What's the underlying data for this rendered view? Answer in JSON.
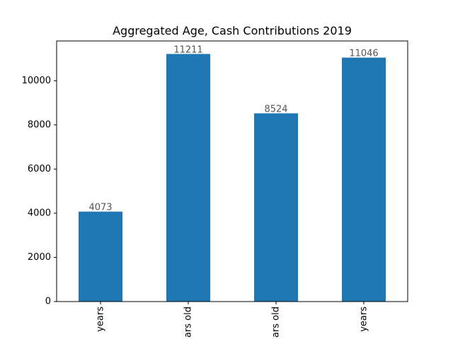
{
  "chart_data": {
    "type": "bar",
    "title": "Aggregated Age, Cash Contributions 2019",
    "xlabel": "",
    "ylabel": "",
    "categories": [
      "years",
      "ars old",
      "ars old",
      "years"
    ],
    "values": [
      4073,
      11211,
      8524,
      11046
    ],
    "data_labels": [
      "4073",
      "11211",
      "8524",
      "11046"
    ],
    "ylim": [
      0,
      11800
    ],
    "yticks": [
      0,
      2000,
      4000,
      6000,
      8000,
      10000
    ],
    "ytick_labels": [
      "0",
      "2000",
      "4000",
      "6000",
      "8000",
      "10000"
    ],
    "grid": false,
    "legend": "none",
    "bar_color": "#1f77b4",
    "label_color": "#555555"
  }
}
